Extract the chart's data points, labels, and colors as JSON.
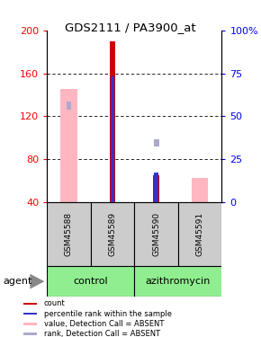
{
  "title": "GDS2111 / PA3900_at",
  "samples": [
    "GSM45588",
    "GSM45589",
    "GSM45590",
    "GSM45591"
  ],
  "ylim_left": [
    40,
    200
  ],
  "ylim_right": [
    0,
    100
  ],
  "yticks_left": [
    40,
    80,
    120,
    160,
    200
  ],
  "ytick_labels_left": [
    "40",
    "80",
    "120",
    "160",
    "200"
  ],
  "yticks_right": [
    0,
    25,
    50,
    75,
    100
  ],
  "ytick_labels_right": [
    "0",
    "25",
    "50",
    "75",
    "100%"
  ],
  "red_bars": [
    null,
    190,
    65,
    null
  ],
  "blue_bars_pct": [
    null,
    73,
    17,
    null
  ],
  "pink_bars": [
    145,
    null,
    null,
    63
  ],
  "lightblue_squares": [
    130,
    null,
    95,
    null
  ],
  "red_color": "#CC0000",
  "blue_color": "#3333CC",
  "pink_color": "#FFB6C1",
  "lightblue_color": "#AAAACC",
  "grid_lines": [
    80,
    120,
    160
  ],
  "groups": [
    {
      "name": "control",
      "start": 0,
      "end": 2
    },
    {
      "name": "azithromycin",
      "start": 2,
      "end": 4
    }
  ],
  "legend_items": [
    {
      "color": "#CC0000",
      "label": "count"
    },
    {
      "color": "#3333CC",
      "label": "percentile rank within the sample"
    },
    {
      "color": "#FFB6C1",
      "label": "value, Detection Call = ABSENT"
    },
    {
      "color": "#AAAACC",
      "label": "rank, Detection Call = ABSENT"
    }
  ]
}
